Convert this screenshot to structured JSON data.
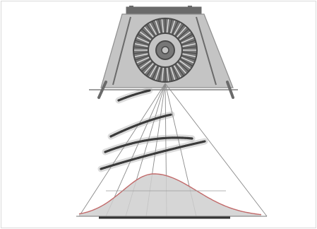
{
  "figure": {
    "colors": {
      "housing_fill": "#c4c4c4",
      "housing_edge": "#8e8e8e",
      "housing_dark": "#6a6a6a",
      "wheel_dark": "#4a4a4a",
      "wheel_mid": "#777777",
      "ray": "#8a8a8a",
      "wave": "#3a3a3a",
      "curve": "#c26a6a",
      "area_fill": "#cfcfcf",
      "baseline": "#333333"
    },
    "ray_count": 7,
    "wave_count": 4
  }
}
